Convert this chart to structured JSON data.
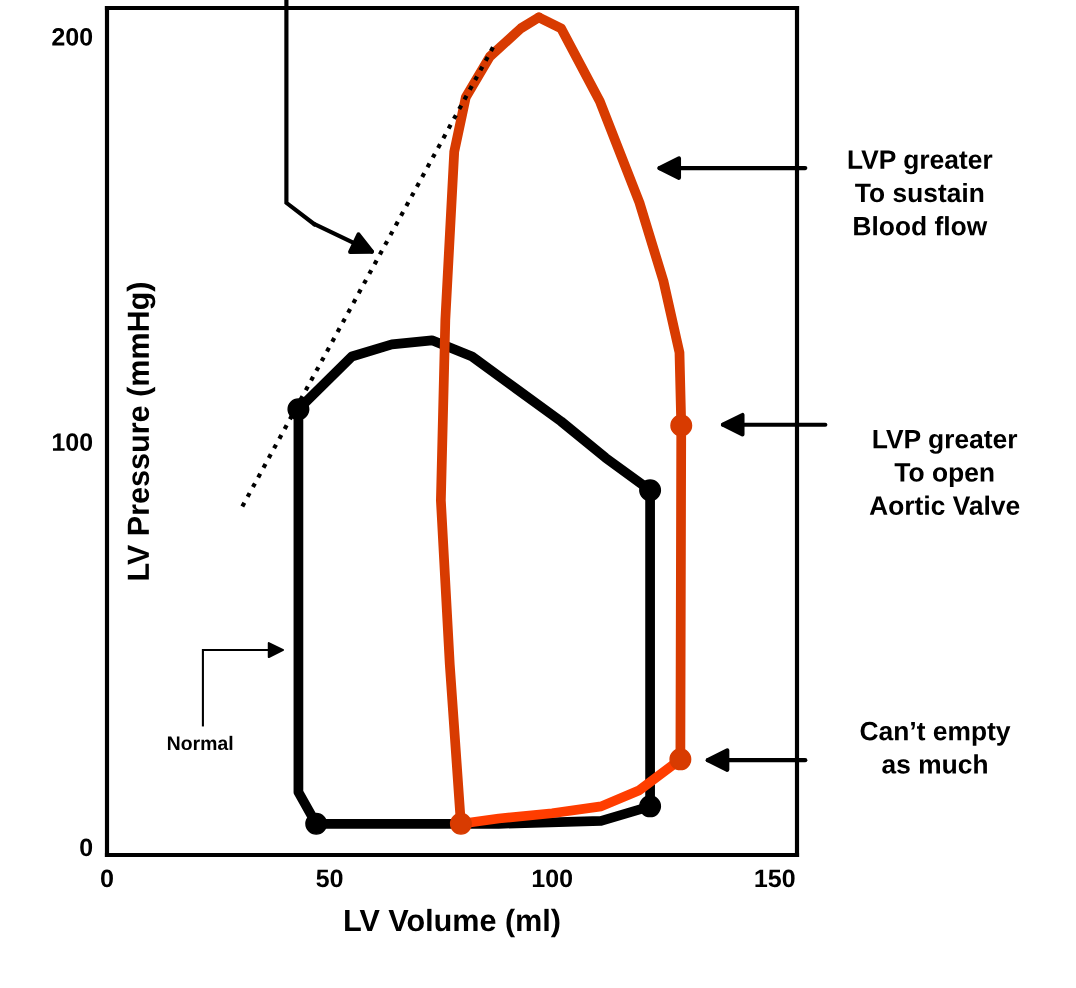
{
  "chart_data": {
    "type": "line",
    "xlabel": "LV Volume (ml)",
    "ylabel": "LV Pressure (mmHg)",
    "xlim": [
      0,
      155
    ],
    "ylim": [
      -2,
      207
    ],
    "xticks": [
      0,
      50,
      100,
      150
    ],
    "yticks": [
      0,
      100,
      200
    ],
    "grid": false,
    "series": [
      {
        "color": "#000000",
        "x": [
          43,
          55,
          64,
          73,
          82,
          92,
          102,
          112,
          122
        ],
        "values": [
          108,
          121,
          124,
          125,
          121,
          113,
          105,
          96,
          88
        ]
      },
      {
        "color": "#000000",
        "x": [
          122,
          122
        ],
        "values": [
          88,
          10
        ]
      },
      {
        "color": "#000000",
        "x": [
          122,
          111,
          88,
          47
        ],
        "values": [
          10,
          6.4,
          5.7,
          5.7
        ]
      },
      {
        "color": "#000000",
        "x": [
          47,
          43,
          43
        ],
        "values": [
          5.7,
          13.5,
          108
        ]
      },
      {
        "color": "#d83b01",
        "x": [
          129,
          128.8
        ],
        "values": [
          104,
          21.6
        ]
      },
      {
        "color": "#ff3d00",
        "x": [
          128.8,
          119.6,
          111,
          100,
          88,
          79.5
        ],
        "values": [
          21.6,
          14,
          10,
          8.3,
          7,
          5.7
        ]
      },
      {
        "color": "#d83b01",
        "x": [
          79.5,
          77,
          75,
          76,
          78,
          80.6,
          86,
          93,
          97
        ],
        "values": [
          5.7,
          45,
          85.5,
          130,
          171.5,
          185,
          195,
          202,
          204.7
        ]
      },
      {
        "color": "#d83b01",
        "x": [
          97,
          102,
          110.7,
          119.6,
          125,
          128.6,
          129
        ],
        "values": [
          204.7,
          202,
          184,
          159,
          139.6,
          122,
          104
        ]
      },
      {
        "color": "#000000",
        "line_style": "dotted",
        "x": [
          30.4,
          87.3
        ],
        "values": [
          84,
          198.5
        ]
      },
      {
        "type": "scatter",
        "marker": "circle",
        "color": "#000000",
        "x": [
          43,
          122,
          122,
          47
        ],
        "values": [
          108,
          88,
          10,
          5.7
        ]
      },
      {
        "type": "scatter",
        "marker": "circle",
        "color": "#d83b01",
        "x": [
          129,
          128.8,
          79.5
        ],
        "values": [
          104,
          21.6,
          5.7
        ]
      }
    ],
    "annotations": [
      "LVP greater\nTo sustain\nBlood flow",
      "LVP greater\nTo open\nAortic Valve",
      "Can’t empty\nas much",
      "Normal"
    ]
  }
}
